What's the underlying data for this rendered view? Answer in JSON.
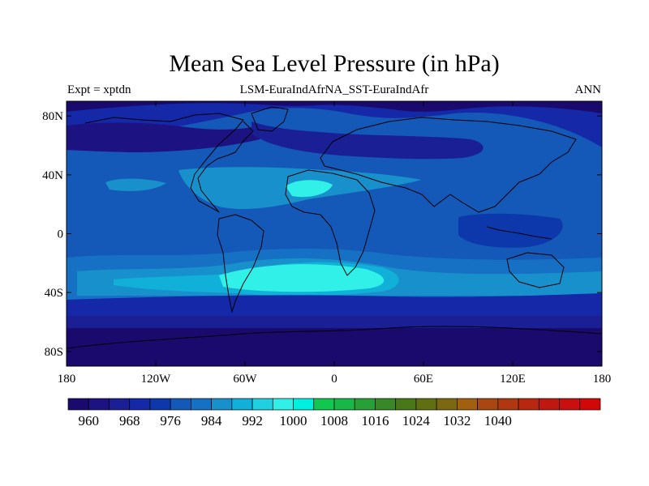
{
  "title": "Mean Sea Level Pressure (in hPa)",
  "left_label": "Expt = xptdn",
  "center_label": "LSM-EuraIndAfrNA_SST-EuraIndAfr",
  "right_label": "ANN",
  "x_ticks": [
    "180",
    "120W",
    "60W",
    "0",
    "60E",
    "120E",
    "180"
  ],
  "y_ticks": [
    "80N",
    "40N",
    "0",
    "40S",
    "80S"
  ],
  "colorbar": {
    "labels": [
      "960",
      "968",
      "976",
      "984",
      "992",
      "1000",
      "1008",
      "1016",
      "1024",
      "1032",
      "1040"
    ],
    "colors": [
      "#1a0a6e",
      "#1d1282",
      "#1a1f96",
      "#1428a8",
      "#0c38ac",
      "#1458b8",
      "#1670c4",
      "#1890cc",
      "#10b0d8",
      "#20d0e0",
      "#30f0e8",
      "#00f0e0",
      "#10c850",
      "#18b848",
      "#28a038",
      "#388828",
      "#487818",
      "#607010",
      "#7c6810",
      "#a06010",
      "#a84810",
      "#b03810",
      "#b82810",
      "#c01810",
      "#c81010",
      "#d00808"
    ]
  },
  "chart_data": {
    "type": "filled-contour-map",
    "title": "Mean Sea Level Pressure (in hPa)",
    "subtitle": "LSM-EuraIndAfrNA_SST-EuraIndAfr",
    "experiment": "Expt = xptdn",
    "period": "ANN",
    "x_range": [
      -180,
      180
    ],
    "y_range": [
      -90,
      90
    ],
    "units": "hPa",
    "contour_levels": [
      960,
      964,
      968,
      972,
      976,
      980,
      984,
      988,
      992,
      996,
      1000,
      1004,
      1008,
      1012,
      1016,
      1020,
      1024,
      1028,
      1032,
      1036,
      1040
    ]
  }
}
